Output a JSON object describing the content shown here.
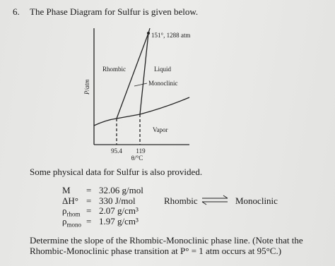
{
  "question": {
    "number": "6.",
    "prompt": "The Phase Diagram for Sulfur is given below.",
    "diagram": {
      "y_axis_label": "P/atm",
      "x_axis_label": "θ/°C",
      "x_marks": [
        "95.4",
        "119"
      ],
      "triple_point_label": "151°, 1288 atm",
      "regions": [
        "Rhombic",
        "Liquid",
        "Monoclinic",
        "Vapor"
      ]
    },
    "data_intro": "Some physical data for Sulfur is also provided.",
    "data_rows": [
      {
        "symbol": "M",
        "subscript": null,
        "eq": "=",
        "value": "32.06 g/mol"
      },
      {
        "symbol": "ΔH°",
        "subscript": null,
        "eq": "=",
        "value": "330 J/mol"
      },
      {
        "symbol": "ρ",
        "subscript": "rhom",
        "eq": "=",
        "value": "2.07 g/cm³"
      },
      {
        "symbol": "ρ",
        "subscript": "mono",
        "eq": "=",
        "value": "1.97 g/cm³"
      }
    ],
    "equilibrium": {
      "left": "Rhombic",
      "right": "Monoclinic"
    },
    "task": "Determine the slope of the Rhombic-Monoclinic phase line. (Note that the Rhombic-Monoclinic phase transition at P° = 1 atm occurs at 95°C.)"
  }
}
